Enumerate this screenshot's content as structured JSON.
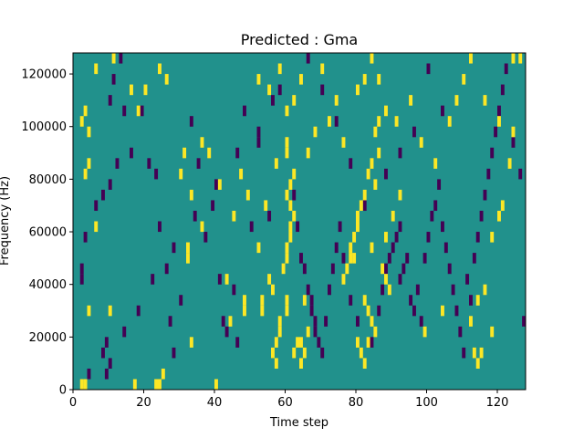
{
  "chart_data": {
    "type": "heatmap",
    "title": "Predicted : Gma",
    "xlabel": "Time step",
    "ylabel": "Frequency (Hz)",
    "xlim": [
      0,
      128
    ],
    "ylim": [
      0,
      128000
    ],
    "x_ticks": [
      0,
      20,
      40,
      60,
      80,
      100,
      120
    ],
    "x_tick_labels": [
      "0",
      "20",
      "40",
      "60",
      "80",
      "100",
      "120"
    ],
    "y_ticks": [
      0,
      20000,
      40000,
      60000,
      80000,
      100000,
      120000
    ],
    "y_tick_labels": [
      "0",
      "20000",
      "40000",
      "60000",
      "80000",
      "100000",
      "120000"
    ],
    "n_time_steps": 128,
    "n_freq_bins": 32,
    "bin_height_hz": 4000,
    "value_levels": [
      -1,
      0,
      1
    ],
    "colors": {
      "low": "#440154",
      "mid": "#21918c",
      "high": "#fde725"
    },
    "background_value": 0,
    "cells_high": [
      [
        2,
        0
      ],
      [
        3,
        0
      ],
      [
        4,
        7
      ],
      [
        6,
        15
      ],
      [
        2,
        25
      ],
      [
        4,
        24
      ],
      [
        3,
        26
      ],
      [
        3,
        20
      ],
      [
        4,
        21
      ],
      [
        10,
        7
      ],
      [
        17,
        0
      ],
      [
        23,
        0
      ],
      [
        24,
        0
      ],
      [
        25,
        1
      ],
      [
        33,
        4
      ],
      [
        32,
        12
      ],
      [
        32,
        13
      ],
      [
        36,
        15
      ],
      [
        40,
        0
      ],
      [
        43,
        10
      ],
      [
        44,
        6
      ],
      [
        45,
        16
      ],
      [
        48,
        7
      ],
      [
        48,
        8
      ],
      [
        52,
        13
      ],
      [
        53,
        7
      ],
      [
        53,
        8
      ],
      [
        54,
        17
      ],
      [
        55,
        10
      ],
      [
        56,
        9
      ],
      [
        57,
        2
      ],
      [
        56,
        3
      ],
      [
        57,
        4
      ],
      [
        58,
        5
      ],
      [
        58,
        6
      ],
      [
        60,
        7
      ],
      [
        60,
        8
      ],
      [
        59,
        11
      ],
      [
        60,
        12
      ],
      [
        60,
        13
      ],
      [
        61,
        14
      ],
      [
        61,
        15
      ],
      [
        62,
        16
      ],
      [
        61,
        17
      ],
      [
        60,
        18
      ],
      [
        61,
        19
      ],
      [
        62,
        20
      ],
      [
        60,
        22
      ],
      [
        60,
        23
      ],
      [
        62,
        3
      ],
      [
        63,
        4
      ],
      [
        64,
        4
      ],
      [
        64,
        2
      ],
      [
        65,
        3
      ],
      [
        66,
        5
      ],
      [
        65,
        8
      ],
      [
        76,
        10
      ],
      [
        77,
        11
      ],
      [
        78,
        12
      ],
      [
        78,
        13
      ],
      [
        79,
        14
      ],
      [
        80,
        15
      ],
      [
        80,
        16
      ],
      [
        81,
        17
      ],
      [
        82,
        18
      ],
      [
        83,
        20
      ],
      [
        84,
        21
      ],
      [
        85,
        19
      ],
      [
        86,
        22
      ],
      [
        85,
        24
      ],
      [
        86,
        25
      ],
      [
        84,
        13
      ],
      [
        87,
        11
      ],
      [
        88,
        10
      ],
      [
        89,
        9
      ],
      [
        82,
        8
      ],
      [
        83,
        7
      ],
      [
        84,
        6
      ],
      [
        85,
        5
      ],
      [
        80,
        4
      ],
      [
        81,
        3
      ],
      [
        82,
        2
      ],
      [
        83,
        4
      ],
      [
        79,
        12
      ],
      [
        88,
        14
      ],
      [
        90,
        16
      ],
      [
        92,
        18
      ],
      [
        99,
        5
      ],
      [
        104,
        7
      ],
      [
        112,
        6
      ],
      [
        114,
        8
      ],
      [
        116,
        9
      ],
      [
        118,
        14
      ],
      [
        120,
        16
      ],
      [
        121,
        17
      ],
      [
        123,
        21
      ],
      [
        124,
        24
      ],
      [
        113,
        3
      ],
      [
        114,
        2
      ],
      [
        115,
        3
      ],
      [
        118,
        5
      ],
      [
        124,
        31
      ],
      [
        126,
        31
      ],
      [
        6,
        30
      ],
      [
        11,
        31
      ],
      [
        16,
        28
      ],
      [
        18,
        26
      ],
      [
        20,
        28
      ],
      [
        24,
        30
      ],
      [
        26,
        29
      ],
      [
        30,
        20
      ],
      [
        31,
        22
      ],
      [
        33,
        18
      ],
      [
        36,
        23
      ],
      [
        38,
        22
      ],
      [
        41,
        19
      ],
      [
        47,
        20
      ],
      [
        49,
        18
      ],
      [
        52,
        29
      ],
      [
        55,
        28
      ],
      [
        57,
        21
      ],
      [
        58,
        30
      ],
      [
        60,
        26
      ],
      [
        62,
        27
      ],
      [
        64,
        29
      ],
      [
        66,
        22
      ],
      [
        68,
        24
      ],
      [
        70,
        30
      ],
      [
        72,
        25
      ],
      [
        74,
        27
      ],
      [
        76,
        23
      ],
      [
        80,
        28
      ],
      [
        82,
        29
      ],
      [
        84,
        31
      ],
      [
        86,
        29
      ],
      [
        88,
        26
      ],
      [
        91,
        25
      ],
      [
        95,
        27
      ],
      [
        98,
        23
      ],
      [
        102,
        21
      ],
      [
        106,
        25
      ],
      [
        108,
        27
      ],
      [
        110,
        29
      ],
      [
        112,
        31
      ],
      [
        116,
        27
      ],
      [
        120,
        25
      ]
    ],
    "cells_low": [
      [
        4,
        1
      ],
      [
        9,
        1
      ],
      [
        10,
        2
      ],
      [
        9,
        4
      ],
      [
        2,
        10
      ],
      [
        2,
        11
      ],
      [
        3,
        14
      ],
      [
        6,
        17
      ],
      [
        8,
        18
      ],
      [
        10,
        19
      ],
      [
        12,
        21
      ],
      [
        10,
        27
      ],
      [
        11,
        29
      ],
      [
        13,
        31
      ],
      [
        14,
        26
      ],
      [
        16,
        22
      ],
      [
        19,
        26
      ],
      [
        21,
        21
      ],
      [
        23,
        20
      ],
      [
        24,
        15
      ],
      [
        26,
        11
      ],
      [
        27,
        6
      ],
      [
        28,
        3
      ],
      [
        30,
        8
      ],
      [
        33,
        25
      ],
      [
        35,
        21
      ],
      [
        37,
        14
      ],
      [
        39,
        17
      ],
      [
        41,
        10
      ],
      [
        42,
        6
      ],
      [
        43,
        5
      ],
      [
        45,
        9
      ],
      [
        46,
        4
      ],
      [
        48,
        26
      ],
      [
        50,
        15
      ],
      [
        52,
        23
      ],
      [
        55,
        16
      ],
      [
        58,
        28
      ],
      [
        62,
        18
      ],
      [
        63,
        15
      ],
      [
        64,
        12
      ],
      [
        65,
        11
      ],
      [
        66,
        9
      ],
      [
        67,
        8
      ],
      [
        67,
        7
      ],
      [
        68,
        6
      ],
      [
        68,
        5
      ],
      [
        69,
        4
      ],
      [
        70,
        3
      ],
      [
        71,
        6
      ],
      [
        72,
        9
      ],
      [
        73,
        11
      ],
      [
        74,
        13
      ],
      [
        75,
        15
      ],
      [
        76,
        12
      ],
      [
        78,
        8
      ],
      [
        80,
        6
      ],
      [
        84,
        4
      ],
      [
        86,
        7
      ],
      [
        87,
        9
      ],
      [
        88,
        11
      ],
      [
        89,
        12
      ],
      [
        90,
        13
      ],
      [
        91,
        14
      ],
      [
        92,
        15
      ],
      [
        92,
        10
      ],
      [
        93,
        11
      ],
      [
        94,
        12
      ],
      [
        95,
        8
      ],
      [
        96,
        7
      ],
      [
        97,
        9
      ],
      [
        98,
        6
      ],
      [
        99,
        12
      ],
      [
        100,
        14
      ],
      [
        101,
        16
      ],
      [
        102,
        17
      ],
      [
        103,
        19
      ],
      [
        104,
        15
      ],
      [
        105,
        13
      ],
      [
        106,
        11
      ],
      [
        107,
        9
      ],
      [
        108,
        7
      ],
      [
        109,
        5
      ],
      [
        110,
        3
      ],
      [
        111,
        10
      ],
      [
        112,
        8
      ],
      [
        113,
        12
      ],
      [
        114,
        14
      ],
      [
        115,
        16
      ],
      [
        116,
        18
      ],
      [
        117,
        20
      ],
      [
        118,
        22
      ],
      [
        119,
        24
      ],
      [
        120,
        26
      ],
      [
        121,
        28
      ],
      [
        122,
        30
      ],
      [
        124,
        23
      ],
      [
        126,
        20
      ],
      [
        127,
        6
      ],
      [
        100,
        30
      ],
      [
        104,
        26
      ],
      [
        96,
        24
      ],
      [
        92,
        22
      ],
      [
        88,
        20
      ],
      [
        82,
        17
      ],
      [
        78,
        21
      ],
      [
        74,
        25
      ],
      [
        70,
        28
      ],
      [
        66,
        31
      ],
      [
        56,
        27
      ],
      [
        52,
        24
      ],
      [
        46,
        22
      ],
      [
        40,
        19
      ],
      [
        34,
        16
      ],
      [
        28,
        13
      ],
      [
        22,
        10
      ],
      [
        18,
        7
      ],
      [
        14,
        5
      ],
      [
        8,
        3
      ]
    ]
  }
}
